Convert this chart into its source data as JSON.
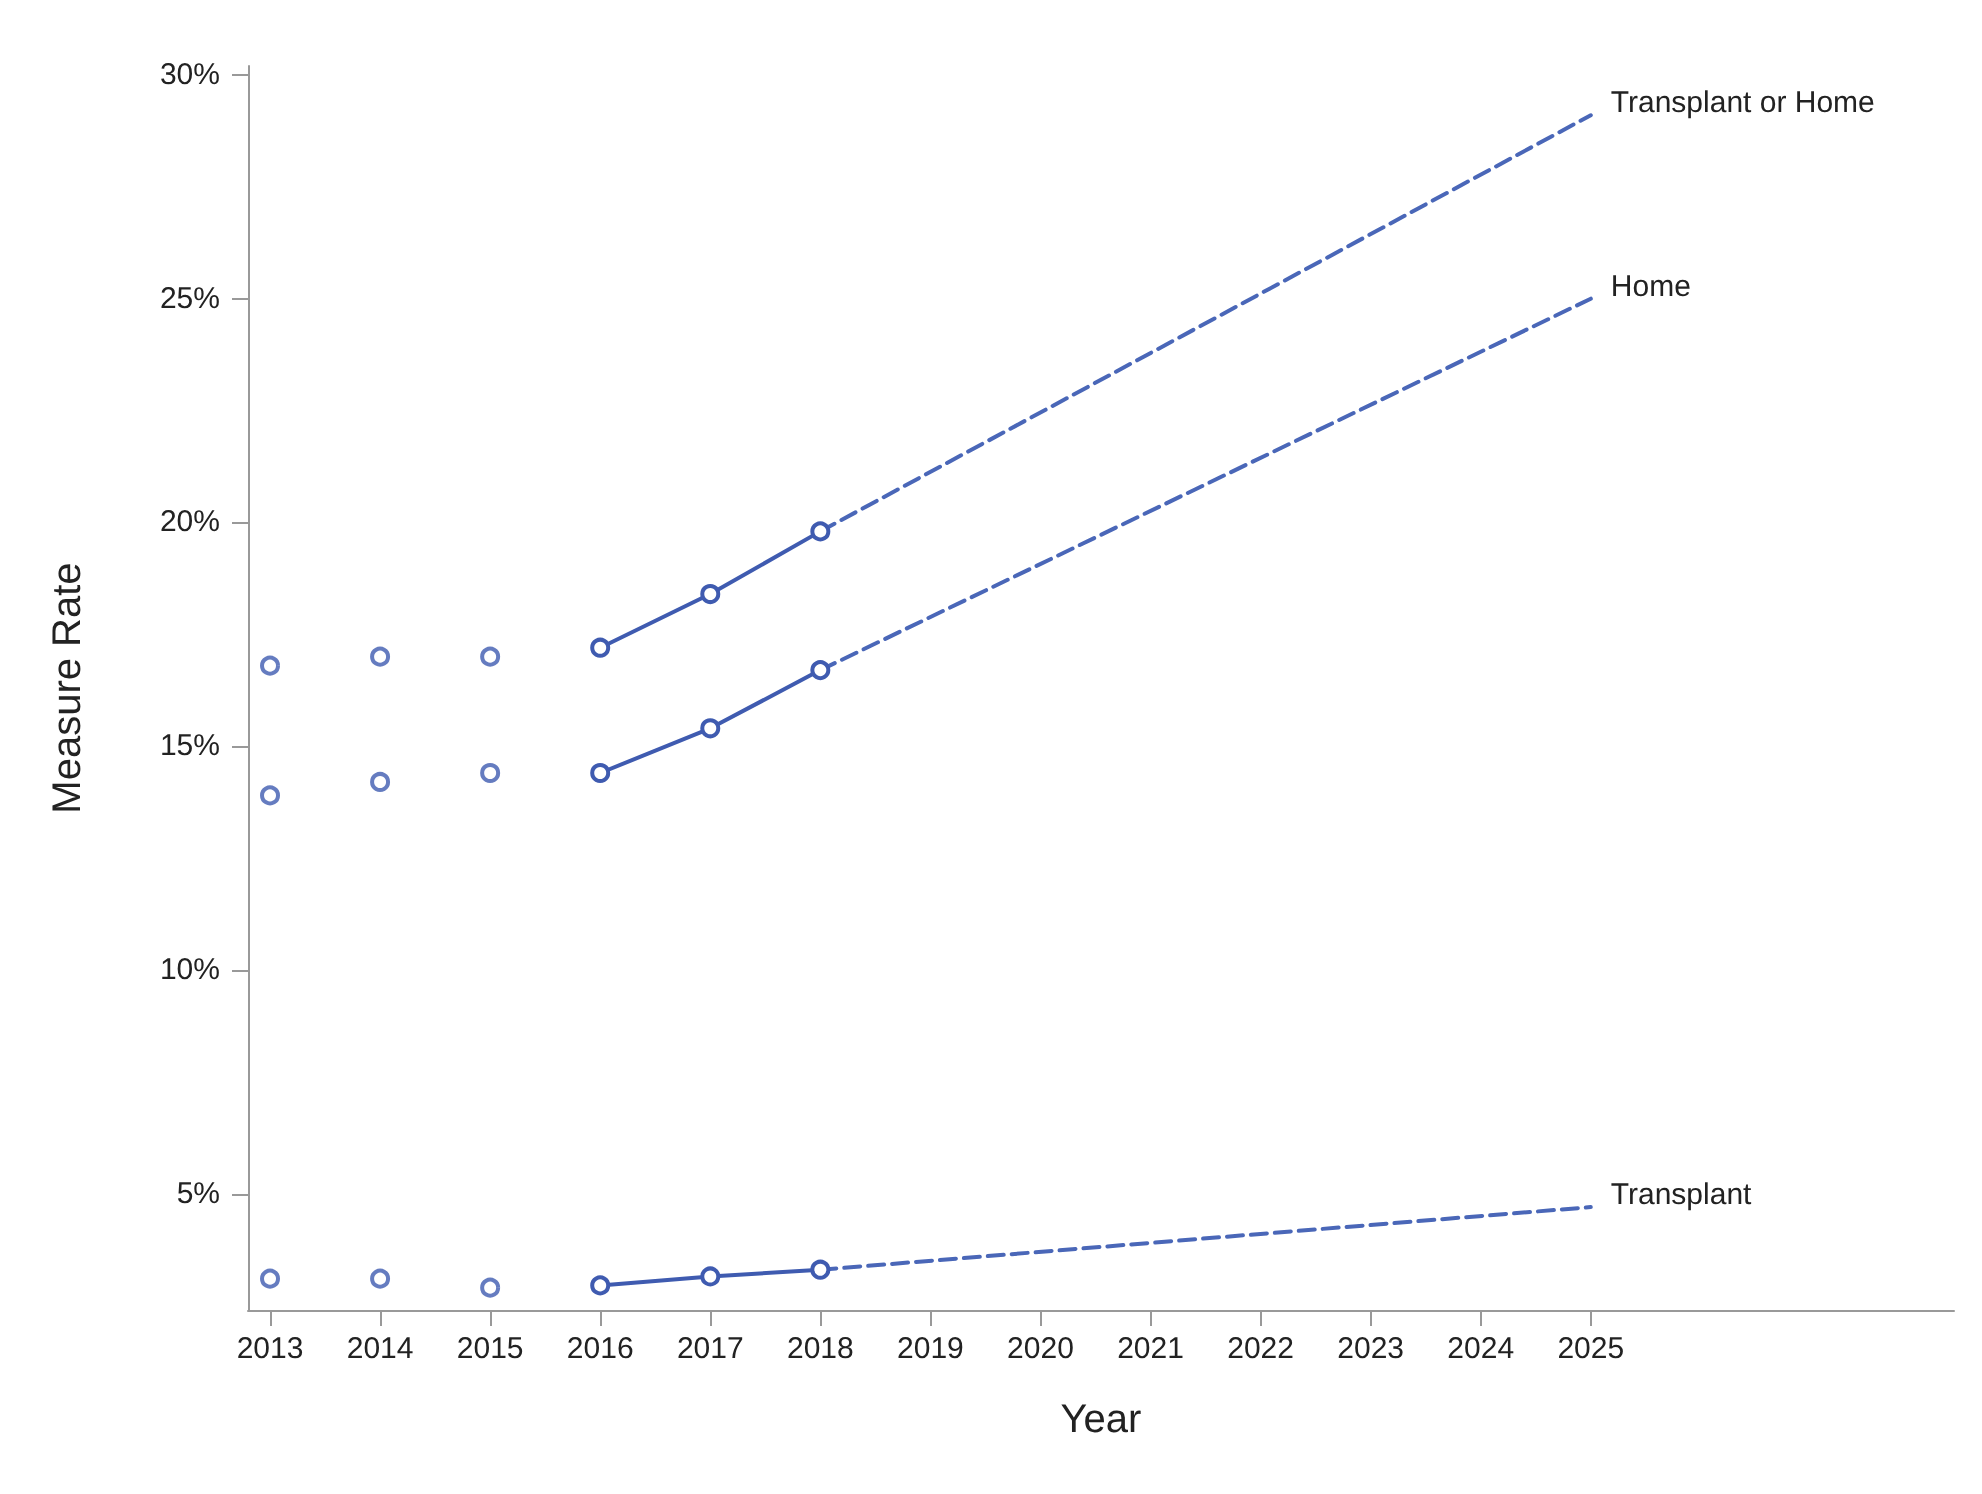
{
  "chart_data": {
    "type": "line",
    "xlabel": "Year",
    "ylabel": "Measure Rate",
    "xlim": [
      2012.8,
      2028.3
    ],
    "xticks": [
      2013,
      2014,
      2015,
      2016,
      2017,
      2018,
      2019,
      2020,
      2021,
      2022,
      2023,
      2024,
      2025
    ],
    "ylim": [
      2.4,
      30.2
    ],
    "yticks": [
      {
        "value": 5,
        "label": "5%"
      },
      {
        "value": 10,
        "label": "10%"
      },
      {
        "value": 15,
        "label": "15%"
      },
      {
        "value": 20,
        "label": "20%"
      },
      {
        "value": 25,
        "label": "25%"
      },
      {
        "value": 30,
        "label": "30%"
      }
    ],
    "grid": false,
    "legend": false,
    "series": [
      {
        "type": "scatter",
        "color": "#3f5bb0",
        "marker": "circle",
        "x": [
          2013,
          2014,
          2015
        ],
        "values": [
          16.8,
          17.0,
          17.0
        ]
      },
      {
        "color": "#3f5bb0",
        "marker": "circle",
        "line_style": "solid",
        "x": [
          2016,
          2017,
          2018
        ],
        "values": [
          17.2,
          18.4,
          19.8
        ]
      },
      {
        "name": "Transplant or Home",
        "color": "#4a67b8",
        "marker": "none",
        "line_style": "dashed",
        "x": [
          2018,
          2025
        ],
        "values": [
          19.8,
          29.1
        ]
      },
      {
        "type": "scatter",
        "color": "#3f5bb0",
        "marker": "circle",
        "x": [
          2013,
          2014,
          2015
        ],
        "values": [
          13.9,
          14.2,
          14.4
        ]
      },
      {
        "color": "#3f5bb0",
        "marker": "circle",
        "line_style": "solid",
        "x": [
          2016,
          2017,
          2018
        ],
        "values": [
          14.4,
          15.4,
          16.7
        ]
      },
      {
        "name": "Home",
        "color": "#4a67b8",
        "marker": "none",
        "line_style": "dashed",
        "x": [
          2018,
          2025
        ],
        "values": [
          16.7,
          25.0
        ]
      },
      {
        "type": "scatter",
        "color": "#3f5bb0",
        "marker": "circle",
        "x": [
          2013,
          2014,
          2015
        ],
        "values": [
          3.1,
          3.1,
          2.9
        ]
      },
      {
        "color": "#3f5bb0",
        "marker": "circle",
        "line_style": "solid",
        "x": [
          2016,
          2017,
          2018
        ],
        "values": [
          2.95,
          3.15,
          3.3
        ]
      },
      {
        "name": "Transplant",
        "color": "#4a67b8",
        "marker": "none",
        "line_style": "dashed",
        "x": [
          2018,
          2025
        ],
        "values": [
          3.3,
          4.7
        ]
      }
    ]
  }
}
